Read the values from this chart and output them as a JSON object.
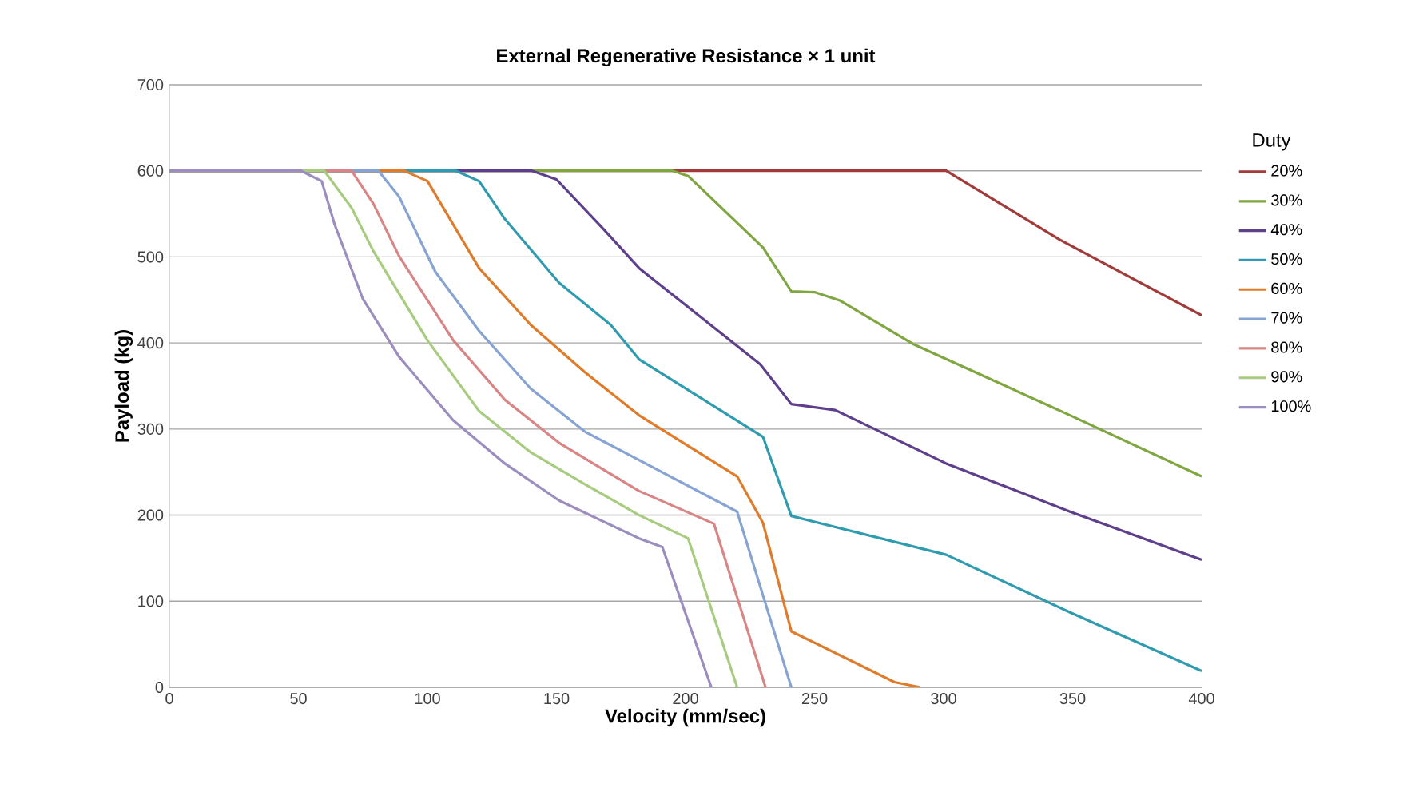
{
  "chart_data": {
    "type": "line",
    "title": "External Regenerative Resistance × 1 unit",
    "xlabel": "Velocity (mm/sec)",
    "ylabel": "Payload (kg)",
    "legend_title": "Duty",
    "xlim": [
      0,
      400
    ],
    "ylim": [
      0,
      700
    ],
    "xticks": [
      0,
      50,
      100,
      150,
      200,
      250,
      300,
      350,
      400
    ],
    "yticks": [
      0,
      100,
      200,
      300,
      400,
      500,
      600,
      700
    ],
    "grid": "y",
    "legend": "right",
    "marker": "none",
    "line_style": "solid",
    "series": [
      {
        "name": "20%",
        "color": "#a33a3a",
        "x": [
          0,
          301,
          345,
          400
        ],
        "values": [
          600,
          600,
          520,
          432
        ]
      },
      {
        "name": "30%",
        "color": "#7fa640",
        "x": [
          0,
          195,
          201,
          230,
          241,
          250,
          260,
          288,
          349,
          400
        ],
        "values": [
          600,
          600,
          594,
          511,
          460,
          459,
          449,
          399,
          316,
          245
        ]
      },
      {
        "name": "40%",
        "color": "#5d3f8c",
        "x": [
          0,
          140.5,
          150,
          168,
          182,
          229,
          241,
          258,
          301,
          349,
          400
        ],
        "values": [
          600,
          600,
          590,
          533,
          487,
          375,
          329,
          322,
          260,
          204,
          148
        ]
      },
      {
        "name": "50%",
        "color": "#2f9bb0",
        "x": [
          0,
          111,
          120,
          130,
          151,
          171,
          182,
          230,
          241,
          301,
          349,
          400
        ],
        "values": [
          600,
          600,
          588,
          544,
          470,
          421,
          381,
          291,
          199,
          154,
          87,
          19
        ]
      },
      {
        "name": "60%",
        "color": "#e07b2a",
        "x": [
          0,
          91,
          100,
          120,
          140,
          161,
          182,
          220,
          230,
          241,
          281,
          291
        ],
        "values": [
          600,
          600,
          588,
          487,
          421,
          366,
          316,
          245,
          191,
          65,
          6,
          0
        ]
      },
      {
        "name": "70%",
        "color": "#86a3d4",
        "x": [
          0,
          81,
          89,
          103,
          120,
          140,
          161,
          182,
          220,
          241
        ],
        "values": [
          600,
          600,
          570,
          483,
          414,
          347,
          297,
          264,
          204,
          0
        ]
      },
      {
        "name": "80%",
        "color": "#d98585",
        "x": [
          0,
          70.6,
          79,
          89,
          110,
          130,
          151,
          182,
          211,
          231
        ],
        "values": [
          600,
          600,
          562,
          501,
          403,
          334,
          284,
          228,
          190,
          0
        ]
      },
      {
        "name": "90%",
        "color": "#a8cc7f",
        "x": [
          0,
          60,
          70.6,
          79,
          100,
          120,
          140,
          161,
          182,
          201,
          220
        ],
        "values": [
          600,
          600,
          557,
          507,
          403,
          321,
          273,
          236,
          200,
          173,
          0
        ]
      },
      {
        "name": "100%",
        "color": "#9b8dbf",
        "x": [
          0,
          51,
          59,
          64,
          75,
          89,
          110,
          130,
          151,
          182,
          191,
          210
        ],
        "values": [
          600,
          600,
          588,
          538,
          451,
          384,
          310,
          260,
          217,
          173,
          163,
          0
        ]
      }
    ]
  }
}
